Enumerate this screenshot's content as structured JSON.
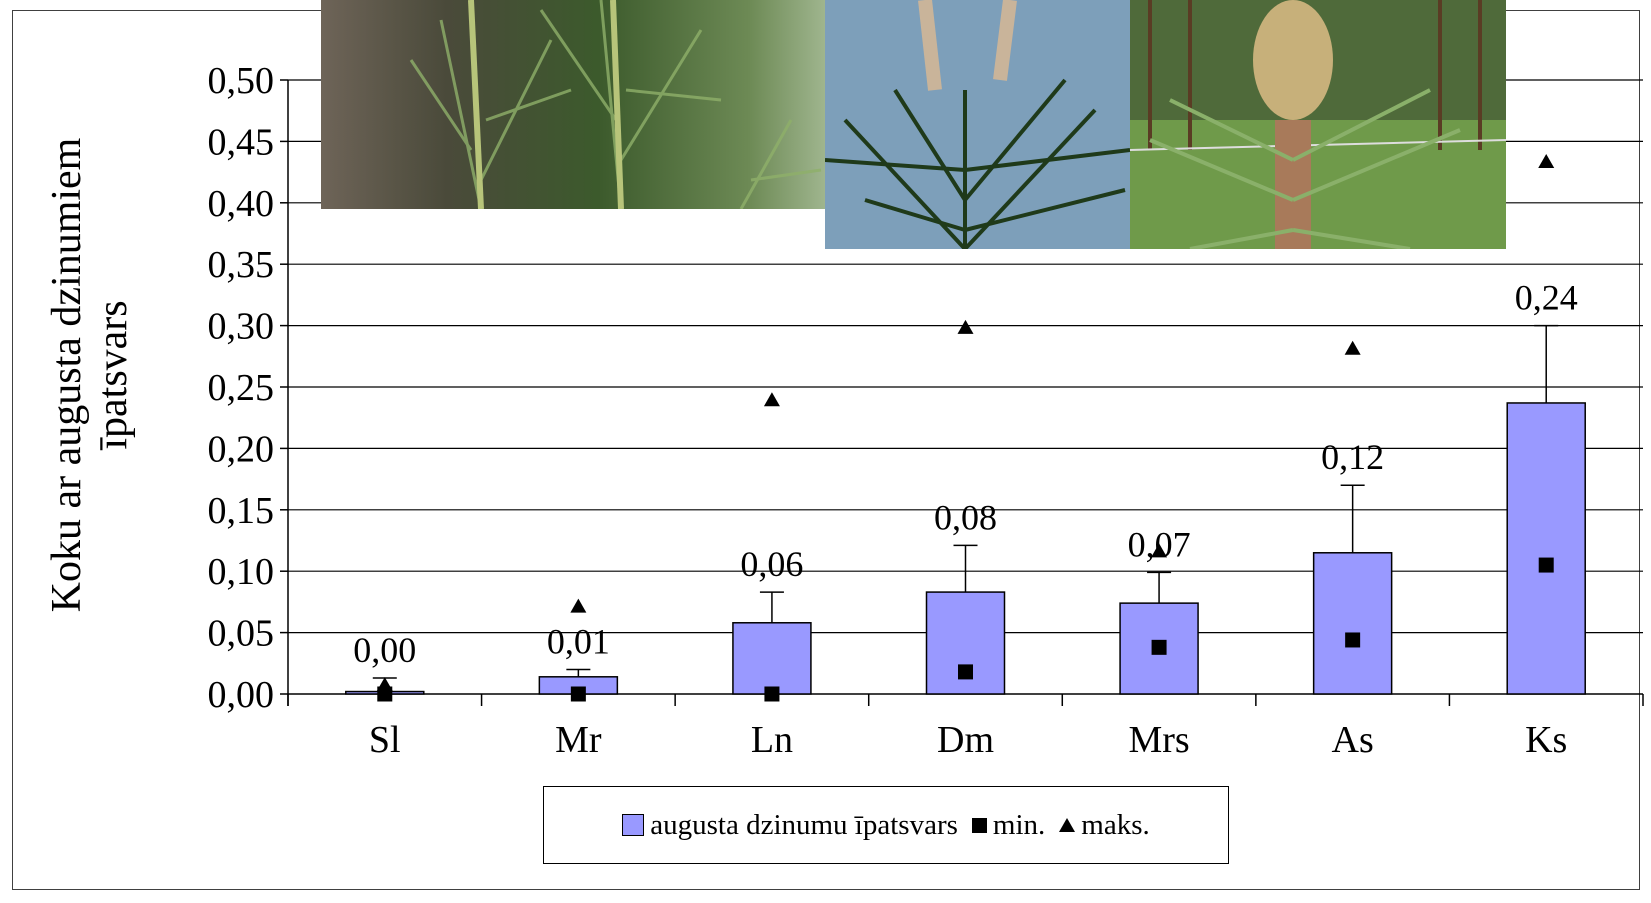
{
  "chart_data": {
    "type": "bar",
    "categories": [
      "Sl",
      "Mr",
      "Ln",
      "Dm",
      "Mrs",
      "As",
      "Ks"
    ],
    "series": [
      {
        "name": "augusta dzinumu īpatsvars",
        "values": [
          0.002,
          0.014,
          0.058,
          0.083,
          0.074,
          0.115,
          0.237
        ],
        "error_upper": [
          0.013,
          0.02,
          0.083,
          0.121,
          0.099,
          0.17,
          0.3
        ]
      },
      {
        "name": "min.",
        "values": [
          0.0,
          0.0,
          0.0,
          0.018,
          0.038,
          0.044,
          0.105
        ]
      },
      {
        "name": "maks.",
        "values": [
          0.008,
          0.072,
          0.24,
          0.299,
          0.117,
          0.282,
          0.434
        ]
      }
    ],
    "data_labels": [
      "0,00",
      "0,01",
      "0,06",
      "0,08",
      "0,07",
      "0,12",
      "0,24"
    ],
    "ylabel_lines": [
      "Koku ar augusta dzinumiem",
      "īpatsvars"
    ],
    "yticks": [
      "0,00",
      "0,05",
      "0,10",
      "0,15",
      "0,20",
      "0,25",
      "0,30",
      "0,35",
      "0,40",
      "0,45",
      "0,50"
    ],
    "ylim": [
      0,
      0.5
    ],
    "grid": true,
    "legend_position": "bottom",
    "colors": {
      "bar": "#9999ff",
      "marker": "#000000"
    }
  },
  "legend": {
    "bar": "augusta dzinumu īpatsvars",
    "min": "min.",
    "max": "maks."
  }
}
